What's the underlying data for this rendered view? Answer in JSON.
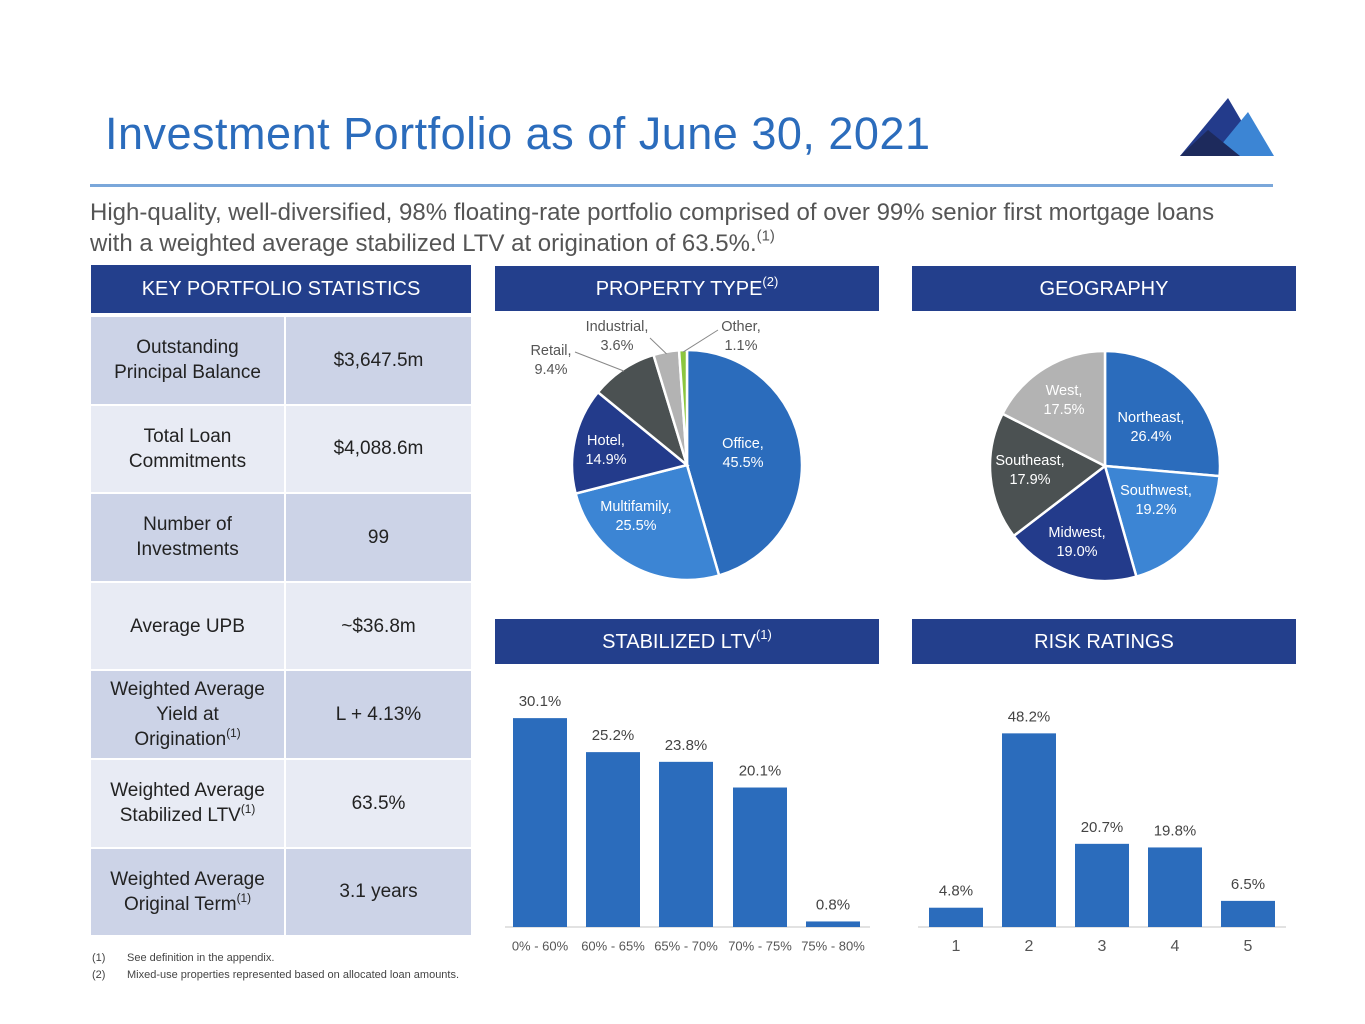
{
  "header": {
    "title": "Investment Portfolio as of June 30, 2021",
    "subtitle": "High-quality, well-diversified, 98% floating-rate portfolio comprised of over 99% senior first mortgage loans with a weighted average stabilized LTV at origination of 63.5%.",
    "subtitle_note": "(1)"
  },
  "table": {
    "title": "KEY PORTFOLIO STATISTICS",
    "rows": [
      {
        "label": "Outstanding Principal Balance",
        "value": "$3,647.5m"
      },
      {
        "label": "Total Loan Commitments",
        "value": "$4,088.6m"
      },
      {
        "label": "Number of Investments",
        "value": "99"
      },
      {
        "label": "Average UPB",
        "value": "~$36.8m"
      },
      {
        "label": "Weighted Average Yield at Origination",
        "note": "(1)",
        "value": "L + 4.13%"
      },
      {
        "label": "Weighted Average Stabilized LTV",
        "note": "(1)",
        "value": "63.5%"
      },
      {
        "label": "Weighted Average Original Term",
        "note": "(1)",
        "value": "3.1 years"
      }
    ]
  },
  "footnotes": [
    {
      "mark": "(1)",
      "text": "See definition in the appendix."
    },
    {
      "mark": "(2)",
      "text": "Mixed-use properties represented based on allocated loan amounts."
    }
  ],
  "chart_data": [
    {
      "type": "pie",
      "title": "PROPERTY TYPE",
      "title_note": "(2)",
      "categories": [
        "Office,",
        "Multifamily,",
        "Hotel,",
        "Retail,",
        "Industrial,",
        "Other,"
      ],
      "values": [
        45.5,
        25.5,
        14.9,
        9.4,
        3.6,
        1.1
      ],
      "value_labels": [
        "45.5%",
        "25.5%",
        "14.9%",
        "9.4%",
        "3.6%",
        "1.1%"
      ],
      "colors": [
        "#2b6cbc",
        "#3c85d4",
        "#233b8b",
        "#4b5152",
        "#b3b3b3",
        "#8cc63f"
      ]
    },
    {
      "type": "pie",
      "title": "GEOGRAPHY",
      "categories": [
        "Northeast,",
        "Southwest,",
        "Midwest,",
        "Southeast,",
        "West,"
      ],
      "values": [
        26.4,
        19.2,
        19.0,
        17.9,
        17.5
      ],
      "value_labels": [
        "26.4%",
        "19.2%",
        "19.0%",
        "17.9%",
        "17.5%"
      ],
      "colors": [
        "#2b6cbc",
        "#3c85d4",
        "#233b8b",
        "#4b5152",
        "#b3b3b3"
      ]
    },
    {
      "type": "bar",
      "title": "STABILIZED LTV",
      "title_note": "(1)",
      "categories": [
        "0% - 60%",
        "60% - 65%",
        "65% - 70%",
        "70% - 75%",
        "75% - 80%"
      ],
      "values": [
        30.1,
        25.2,
        23.8,
        20.1,
        0.8
      ],
      "value_labels": [
        "30.1%",
        "25.2%",
        "23.8%",
        "20.1%",
        "0.8%"
      ],
      "color": "#2b6cbc",
      "ylim": [
        0,
        33
      ]
    },
    {
      "type": "bar",
      "title": "RISK RATINGS",
      "categories": [
        "1",
        "2",
        "3",
        "4",
        "5"
      ],
      "values": [
        4.8,
        48.2,
        20.7,
        19.8,
        6.5
      ],
      "value_labels": [
        "4.8%",
        "48.2%",
        "20.7%",
        "19.8%",
        "6.5%"
      ],
      "color": "#2b6cbc",
      "ylim": [
        0,
        57
      ]
    }
  ]
}
